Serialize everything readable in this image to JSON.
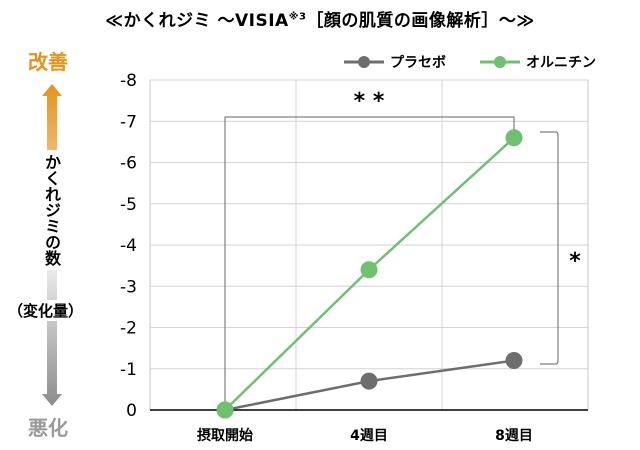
{
  "header": {
    "title": "≪かくれジミ ～VISIA",
    "title_sup": "※3",
    "title_tail": "［顔の肌質の画像解析］～≫"
  },
  "side": {
    "good": "改善",
    "bad": "悪化",
    "vertical_label": "かくれジミの数",
    "paren_label": "（変化量）"
  },
  "colors": {
    "placebo": "#6e6e6e",
    "ornithine": "#6fc16f",
    "good": "#e8921c",
    "bad": "#9a9a9a"
  },
  "chart_data": {
    "type": "line",
    "categories": [
      "摂取開始",
      "4週目",
      "8週目"
    ],
    "y_ticks": [
      "-8",
      "-7",
      "-6",
      "-5",
      "-4",
      "-3",
      "-2",
      "-1",
      "0"
    ],
    "ylim": [
      0,
      -8
    ],
    "y_inverted": true,
    "grid": true,
    "legend_position": "top-right",
    "series": [
      {
        "name": "プラセボ",
        "values": [
          0,
          -0.7,
          -1.2
        ]
      },
      {
        "name": "オルニチン",
        "values": [
          0,
          -3.4,
          -6.6
        ]
      }
    ],
    "annotations": [
      {
        "text": "* *",
        "between": "摂取開始–8週目"
      },
      {
        "text": "*",
        "between": "placebo–ornithine at 8週目"
      }
    ]
  }
}
